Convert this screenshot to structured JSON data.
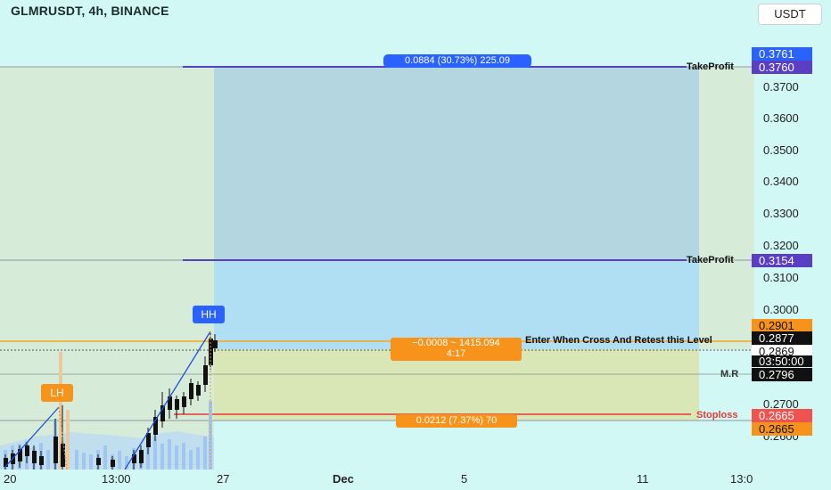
{
  "header": {
    "title": "GLMRUSDT, 4h, BINANCE",
    "currency": "USDT"
  },
  "price_ticks": [
    "0.3700",
    "0.3600",
    "0.3500",
    "0.3400",
    "0.3300",
    "0.3200",
    "0.3100",
    "0.3000",
    "0.2700",
    "0.2600"
  ],
  "time_ticks": [
    "20",
    "13:00",
    "27",
    "Dec",
    "5",
    "11",
    "13:0"
  ],
  "labels": {
    "tp1_badge": "0.3761",
    "tp1": "0.3760",
    "tp2": "0.3154",
    "entry_top": "0.2901",
    "last_price": "0.2877",
    "current": "0.2869",
    "countdown": "03:50:00",
    "mr": "0.2796",
    "sl": "0.2665",
    "sl2": "0.2665"
  },
  "annotations": {
    "tp_line": "TakeProfit",
    "tp_line2": "TakeProfit",
    "entry_text": "Enter When Cross And Retest this Level",
    "mr_text": "M.R",
    "sl_text": "Stoploss",
    "target_badge": "0.0884 (30.73%) 225.09",
    "risk_badge": "0.0212 (7.37%) 70",
    "entry_badge_1": "−0.0008 ~ 1415.094",
    "entry_badge_2": "4:17",
    "pivot_hh": "HH",
    "pivot_lh": "LH"
  },
  "colors": {
    "background": "#d2f8f5",
    "target_zone": "#a9dcf3",
    "risk_zone": "#d9e7b8",
    "tp_line": "#5b3fc3",
    "sl_line": "#e53935",
    "entry_line": "#f5a623",
    "accent_blue": "#2962ff",
    "orange": "#f7931a"
  }
}
